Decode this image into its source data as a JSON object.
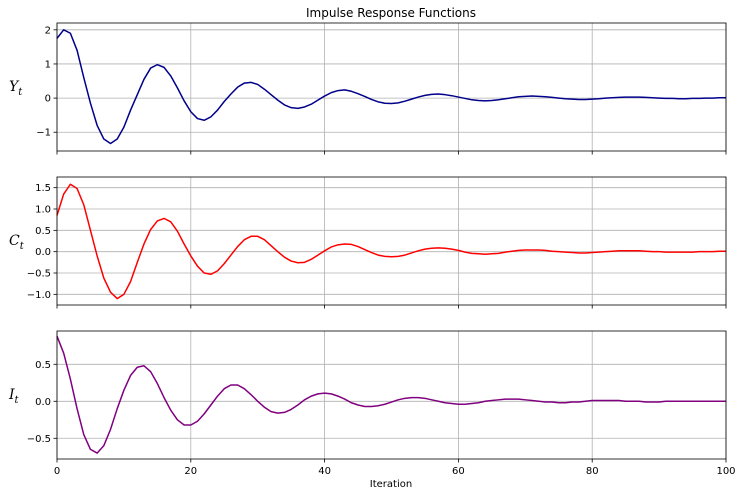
{
  "chart_data": {
    "type": "line",
    "title": "Impulse Response Functions",
    "xlabel": "Iteration",
    "xlim": [
      0,
      100
    ],
    "xticks": [
      0,
      20,
      40,
      60,
      80,
      100
    ],
    "grid": true,
    "panels": [
      {
        "ylabel_main": "Y",
        "ylabel_sub": "t",
        "color": "#00008b",
        "ylim": [
          -1.55,
          2.2
        ],
        "yticks": [
          2,
          1,
          0,
          -1
        ],
        "ytick_labels": [
          "2",
          "1",
          "0",
          "−1"
        ],
        "series": {
          "x": [
            0,
            1,
            2,
            3,
            4,
            5,
            6,
            7,
            8,
            9,
            10,
            11,
            12,
            13,
            14,
            15,
            16,
            17,
            18,
            19,
            20,
            21,
            22,
            23,
            24,
            25,
            26,
            27,
            28,
            29,
            30,
            31,
            32,
            33,
            34,
            35,
            36,
            37,
            38,
            39,
            40,
            41,
            42,
            43,
            44,
            45,
            46,
            47,
            48,
            49,
            50,
            51,
            52,
            53,
            54,
            55,
            56,
            57,
            58,
            59,
            60,
            61,
            62,
            63,
            64,
            65,
            66,
            67,
            68,
            69,
            70,
            71,
            72,
            73,
            74,
            75,
            76,
            77,
            78,
            79,
            80,
            81,
            82,
            83,
            84,
            85,
            86,
            87,
            88,
            89,
            90,
            91,
            92,
            93,
            94,
            95,
            96,
            97,
            98,
            99,
            100
          ],
          "y": [
            1.75,
            2.0,
            1.9,
            1.4,
            0.6,
            -0.15,
            -0.8,
            -1.2,
            -1.33,
            -1.2,
            -0.85,
            -0.35,
            0.1,
            0.55,
            0.88,
            0.98,
            0.9,
            0.65,
            0.3,
            -0.08,
            -0.4,
            -0.6,
            -0.65,
            -0.55,
            -0.35,
            -0.1,
            0.12,
            0.32,
            0.44,
            0.46,
            0.4,
            0.26,
            0.1,
            -0.06,
            -0.2,
            -0.28,
            -0.3,
            -0.26,
            -0.18,
            -0.06,
            0.06,
            0.16,
            0.22,
            0.24,
            0.2,
            0.13,
            0.05,
            -0.04,
            -0.11,
            -0.15,
            -0.16,
            -0.14,
            -0.09,
            -0.03,
            0.03,
            0.08,
            0.11,
            0.12,
            0.1,
            0.07,
            0.03,
            -0.01,
            -0.05,
            -0.07,
            -0.08,
            -0.07,
            -0.05,
            -0.02,
            0.01,
            0.04,
            0.05,
            0.06,
            0.05,
            0.04,
            0.02,
            0.0,
            -0.02,
            -0.03,
            -0.04,
            -0.04,
            -0.03,
            -0.02,
            0.0,
            0.01,
            0.02,
            0.03,
            0.03,
            0.03,
            0.02,
            0.01,
            0.0,
            -0.01,
            -0.01,
            -0.02,
            -0.02,
            -0.01,
            -0.01,
            0.0,
            0.0,
            0.01,
            0.01
          ]
        }
      },
      {
        "ylabel_main": "C",
        "ylabel_sub": "t",
        "color": "#ff0000",
        "ylim": [
          -1.25,
          1.75
        ],
        "yticks": [
          1.5,
          1.0,
          0.5,
          0.0,
          -0.5,
          -1.0
        ],
        "ytick_labels": [
          "1.5",
          "1.0",
          "0.5",
          "0.0",
          "−0.5",
          "−1.0"
        ],
        "series": {
          "x": [
            0,
            1,
            2,
            3,
            4,
            5,
            6,
            7,
            8,
            9,
            10,
            11,
            12,
            13,
            14,
            15,
            16,
            17,
            18,
            19,
            20,
            21,
            22,
            23,
            24,
            25,
            26,
            27,
            28,
            29,
            30,
            31,
            32,
            33,
            34,
            35,
            36,
            37,
            38,
            39,
            40,
            41,
            42,
            43,
            44,
            45,
            46,
            47,
            48,
            49,
            50,
            51,
            52,
            53,
            54,
            55,
            56,
            57,
            58,
            59,
            60,
            61,
            62,
            63,
            64,
            65,
            66,
            67,
            68,
            69,
            70,
            71,
            72,
            73,
            74,
            75,
            76,
            77,
            78,
            79,
            80,
            81,
            82,
            83,
            84,
            85,
            86,
            87,
            88,
            89,
            90,
            91,
            92,
            93,
            94,
            95,
            96,
            97,
            98,
            99,
            100
          ],
          "y": [
            0.85,
            1.35,
            1.58,
            1.48,
            1.1,
            0.5,
            -0.1,
            -0.62,
            -0.95,
            -1.1,
            -1.0,
            -0.7,
            -0.25,
            0.18,
            0.52,
            0.72,
            0.78,
            0.7,
            0.48,
            0.18,
            -0.1,
            -0.34,
            -0.5,
            -0.53,
            -0.45,
            -0.28,
            -0.08,
            0.12,
            0.28,
            0.36,
            0.36,
            0.28,
            0.14,
            0.0,
            -0.13,
            -0.22,
            -0.26,
            -0.25,
            -0.18,
            -0.08,
            0.02,
            0.11,
            0.16,
            0.18,
            0.17,
            0.12,
            0.05,
            -0.02,
            -0.08,
            -0.11,
            -0.12,
            -0.11,
            -0.08,
            -0.03,
            0.02,
            0.06,
            0.08,
            0.09,
            0.08,
            0.06,
            0.03,
            -0.01,
            -0.04,
            -0.05,
            -0.06,
            -0.05,
            -0.04,
            -0.01,
            0.01,
            0.03,
            0.04,
            0.04,
            0.04,
            0.03,
            0.01,
            0.0,
            -0.01,
            -0.02,
            -0.03,
            -0.03,
            -0.02,
            -0.01,
            0.0,
            0.01,
            0.02,
            0.02,
            0.02,
            0.02,
            0.01,
            0.0,
            0.0,
            -0.01,
            -0.01,
            -0.01,
            -0.01,
            -0.01,
            0.0,
            0.0,
            0.0,
            0.01,
            0.01
          ]
        }
      },
      {
        "ylabel_main": "I",
        "ylabel_sub": "t",
        "color": "#800080",
        "ylim": [
          -0.78,
          0.95
        ],
        "yticks": [
          0.5,
          0.0,
          -0.5
        ],
        "ytick_labels": [
          "0.5",
          "0.0",
          "−0.5"
        ],
        "series": {
          "x": [
            0,
            1,
            2,
            3,
            4,
            5,
            6,
            7,
            8,
            9,
            10,
            11,
            12,
            13,
            14,
            15,
            16,
            17,
            18,
            19,
            20,
            21,
            22,
            23,
            24,
            25,
            26,
            27,
            28,
            29,
            30,
            31,
            32,
            33,
            34,
            35,
            36,
            37,
            38,
            39,
            40,
            41,
            42,
            43,
            44,
            45,
            46,
            47,
            48,
            49,
            50,
            51,
            52,
            53,
            54,
            55,
            56,
            57,
            58,
            59,
            60,
            61,
            62,
            63,
            64,
            65,
            66,
            67,
            68,
            69,
            70,
            71,
            72,
            73,
            74,
            75,
            76,
            77,
            78,
            79,
            80,
            81,
            82,
            83,
            84,
            85,
            86,
            87,
            88,
            89,
            90,
            91,
            92,
            93,
            94,
            95,
            96,
            97,
            98,
            99,
            100
          ],
          "y": [
            0.88,
            0.65,
            0.3,
            -0.1,
            -0.45,
            -0.65,
            -0.7,
            -0.6,
            -0.38,
            -0.1,
            0.15,
            0.35,
            0.46,
            0.48,
            0.4,
            0.24,
            0.05,
            -0.12,
            -0.25,
            -0.32,
            -0.32,
            -0.27,
            -0.17,
            -0.05,
            0.07,
            0.17,
            0.22,
            0.22,
            0.17,
            0.09,
            0.0,
            -0.08,
            -0.14,
            -0.16,
            -0.15,
            -0.11,
            -0.05,
            0.02,
            0.07,
            0.1,
            0.11,
            0.1,
            0.07,
            0.03,
            -0.02,
            -0.05,
            -0.07,
            -0.07,
            -0.06,
            -0.04,
            -0.01,
            0.02,
            0.04,
            0.05,
            0.05,
            0.04,
            0.02,
            0.0,
            -0.02,
            -0.03,
            -0.04,
            -0.04,
            -0.03,
            -0.02,
            0.0,
            0.01,
            0.02,
            0.03,
            0.03,
            0.03,
            0.02,
            0.01,
            0.0,
            -0.01,
            -0.01,
            -0.02,
            -0.02,
            -0.01,
            -0.01,
            0.0,
            0.01,
            0.01,
            0.01,
            0.01,
            0.01,
            0.0,
            0.0,
            0.0,
            -0.01,
            -0.01,
            -0.01,
            0.0,
            0.0,
            0.0,
            0.0,
            0.0,
            0.0,
            0.0,
            0.0,
            0.0,
            0.0
          ]
        }
      }
    ]
  }
}
